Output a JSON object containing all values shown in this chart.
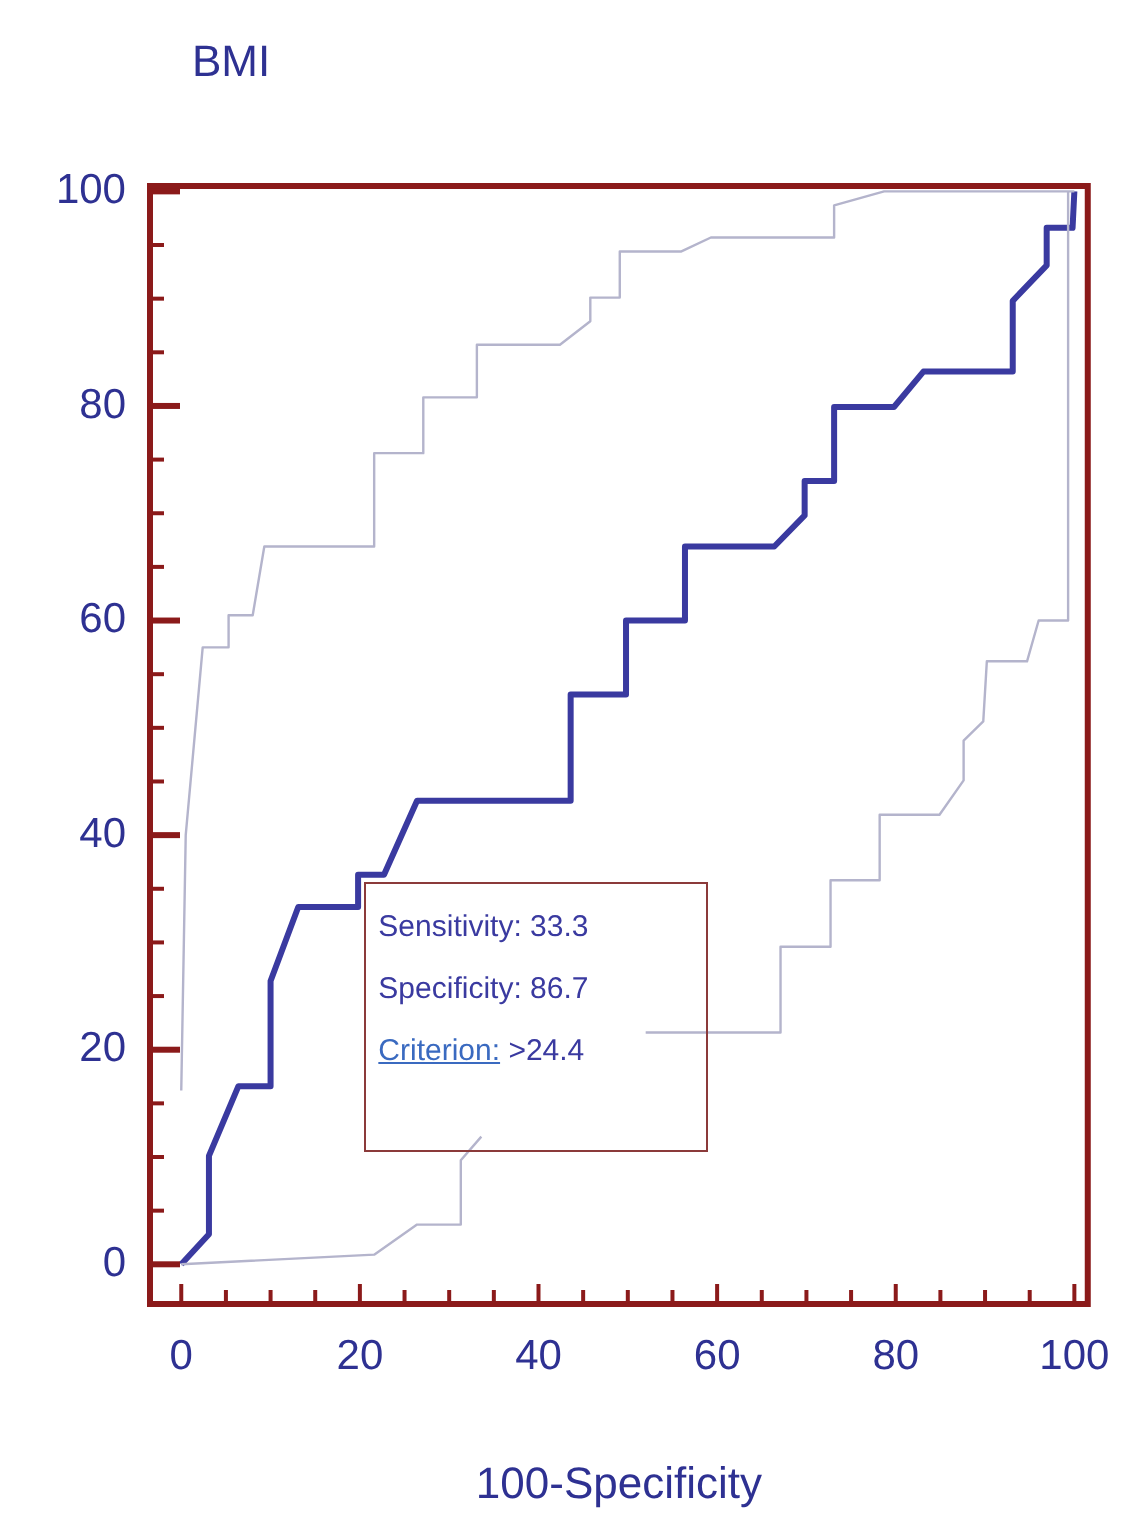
{
  "chart_data": {
    "type": "line",
    "title": "BMI",
    "xlabel": "100-Specificity",
    "xlim": [
      -3.5,
      101.5
    ],
    "ylim": [
      -3.7,
      100.5
    ],
    "xticks": [
      0,
      {
        "value": 5,
        "label": null
      },
      {
        "value": 10,
        "label": null
      },
      {
        "value": 15,
        "label": null
      },
      20,
      {
        "value": 25,
        "label": null
      },
      {
        "value": 30,
        "label": null
      },
      {
        "value": 35,
        "label": null
      },
      40,
      {
        "value": 45,
        "label": null
      },
      {
        "value": 50,
        "label": null
      },
      {
        "value": 55,
        "label": null
      },
      60,
      {
        "value": 65,
        "label": null
      },
      {
        "value": 70,
        "label": null
      },
      {
        "value": 75,
        "label": null
      },
      80,
      {
        "value": 85,
        "label": null
      },
      {
        "value": 90,
        "label": null
      },
      {
        "value": 95,
        "label": null
      },
      100
    ],
    "yticks": [
      0,
      {
        "value": 5,
        "label": null
      },
      {
        "value": 10,
        "label": null
      },
      {
        "value": 15,
        "label": null
      },
      20,
      {
        "value": 25,
        "label": null
      },
      {
        "value": 30,
        "label": null
      },
      {
        "value": 35,
        "label": null
      },
      40,
      {
        "value": 45,
        "label": null
      },
      {
        "value": 50,
        "label": null
      },
      {
        "value": 55,
        "label": null
      },
      60,
      {
        "value": 65,
        "label": null
      },
      {
        "value": 70,
        "label": null
      },
      {
        "value": 75,
        "label": null
      },
      80,
      {
        "value": 85,
        "label": null
      },
      {
        "value": 90,
        "label": null
      },
      {
        "value": 95,
        "label": null
      },
      100
    ],
    "grid": false,
    "legend": false,
    "marker": "none",
    "line_style": "solid",
    "annotations": [
      "Sensitivity: 33.3",
      "Specificity: 86.7",
      "Criterion: >24.4"
    ],
    "series": [
      {
        "color": "#b4b4cc",
        "x": [
          0,
          0.5,
          2.4,
          5.3,
          5.3,
          8,
          9.3,
          21.6,
          21.6,
          27.1,
          27.1,
          33.1,
          33.1,
          42.4,
          45.8,
          45.8,
          49.1,
          49.1,
          56,
          59.3,
          73.1,
          73.1,
          78.7,
          100
        ],
        "values": [
          16.2,
          40,
          57.5,
          57.5,
          60.5,
          60.5,
          66.9,
          66.9,
          75.6,
          75.6,
          80.8,
          80.8,
          85.7,
          85.7,
          87.9,
          90.1,
          90.1,
          94.4,
          94.4,
          95.7,
          95.7,
          98.7,
          100,
          100
        ]
      },
      {
        "color": "#b4b4cc",
        "x": [
          0,
          21.6,
          26.4,
          31.3,
          31.3,
          33.6,
          null,
          52,
          67.1,
          67.1,
          72.7,
          72.7,
          78.2,
          78.2,
          84.9,
          87.6,
          87.6,
          89.8,
          90.2,
          94.7,
          96,
          99.3,
          99.3
        ],
        "values": [
          0,
          0.9,
          3.7,
          3.7,
          9.7,
          11.9,
          null,
          21.6,
          21.6,
          29.6,
          29.6,
          35.8,
          35.8,
          41.9,
          41.9,
          45.1,
          48.8,
          50.6,
          56.2,
          56.2,
          60,
          60,
          100
        ]
      },
      {
        "color": "#3a3aa0",
        "x": [
          0,
          3.1,
          3.1,
          6.4,
          10,
          10,
          13.1,
          19.8,
          19.8,
          22.7,
          26.4,
          43.6,
          43.6,
          49.8,
          49.8,
          56.4,
          56.4,
          66.4,
          69.8,
          69.8,
          73.1,
          73.1,
          79.8,
          83.1,
          93.1,
          93.1,
          96.9,
          96.9,
          99.8,
          100
        ],
        "values": [
          0,
          2.8,
          10.1,
          16.6,
          16.6,
          26.4,
          33.3,
          33.3,
          36.3,
          36.3,
          43.2,
          43.2,
          53.1,
          53.1,
          60,
          60,
          66.9,
          66.9,
          69.8,
          73,
          73,
          79.9,
          79.9,
          83.2,
          83.2,
          89.8,
          93.1,
          96.6,
          96.6,
          100
        ]
      }
    ]
  }
}
